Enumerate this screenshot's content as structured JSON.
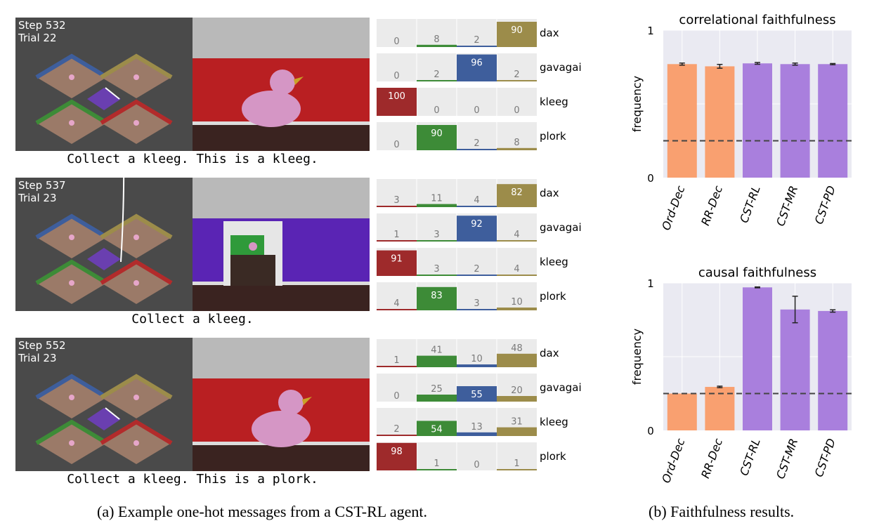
{
  "rows": [
    {
      "overlay": [
        "Step 532",
        "Trial 22"
      ],
      "instruction": "Collect a kleeg. This is a kleeg.",
      "view_wall": "#b91f22",
      "view_object": "duck",
      "words": [
        "dax",
        "gavagai",
        "kleeg",
        "plork"
      ]
    },
    {
      "overlay": [
        "Step 537",
        "Trial 23"
      ],
      "instruction": "Collect a kleeg.",
      "view_wall": "#5a24b4",
      "view_object": "doorway",
      "words": [
        "dax",
        "gavagai",
        "kleeg",
        "plork"
      ]
    },
    {
      "overlay": [
        "Step 552",
        "Trial 23"
      ],
      "instruction": "Collect a kleeg. This is a plork.",
      "view_wall": "#b91f22",
      "view_object": "duck",
      "words": [
        "dax",
        "gavagai",
        "kleeg",
        "plork"
      ]
    }
  ],
  "captions": {
    "a": "(a) Example one-hot messages from a CST-RL agent.",
    "b": "(b) Faithfulness results."
  },
  "chart_data": [
    {
      "type": "bar",
      "name": "message-row-1",
      "categories": [
        "dax",
        "gavagai",
        "kleeg",
        "plork"
      ],
      "values": [
        [
          0,
          8,
          2,
          90
        ],
        [
          0,
          2,
          96,
          2
        ],
        [
          100,
          0,
          0,
          0
        ],
        [
          0,
          90,
          2,
          8
        ]
      ],
      "colors": [
        "#9e2a2b",
        "#3d8b37",
        "#3e5e9c",
        "#9c8c4a"
      ]
    },
    {
      "type": "bar",
      "name": "message-row-2",
      "categories": [
        "dax",
        "gavagai",
        "kleeg",
        "plork"
      ],
      "values": [
        [
          3,
          11,
          4,
          82
        ],
        [
          1,
          3,
          92,
          4
        ],
        [
          91,
          3,
          2,
          4
        ],
        [
          4,
          83,
          3,
          10
        ]
      ],
      "colors": [
        "#9e2a2b",
        "#3d8b37",
        "#3e5e9c",
        "#9c8c4a"
      ]
    },
    {
      "type": "bar",
      "name": "message-row-3",
      "categories": [
        "dax",
        "gavagai",
        "kleeg",
        "plork"
      ],
      "values": [
        [
          1,
          41,
          10,
          48
        ],
        [
          0,
          25,
          55,
          20
        ],
        [
          2,
          54,
          13,
          31
        ],
        [
          98,
          1,
          0,
          1
        ]
      ],
      "colors": [
        "#9e2a2b",
        "#3d8b37",
        "#3e5e9c",
        "#9c8c4a"
      ]
    },
    {
      "type": "bar",
      "title": "correlational faithfulness",
      "ylabel": "frequency",
      "categories": [
        "Ord-Dec",
        "RR-Dec",
        "CST-RL",
        "CST-MR",
        "CST-PD"
      ],
      "values": [
        0.77,
        0.755,
        0.775,
        0.77,
        0.77
      ],
      "errors": [
        0.007,
        0.013,
        0.006,
        0.007,
        0.004
      ],
      "colors": [
        "#f9a070",
        "#f9a070",
        "#a97fdd",
        "#a97fdd",
        "#a97fdd"
      ],
      "baseline": 0.25,
      "ylim": [
        0,
        1
      ],
      "yticks": [
        "0",
        "1"
      ]
    },
    {
      "type": "bar",
      "title": "causal faithfulness",
      "ylabel": "frequency",
      "categories": [
        "Ord-Dec",
        "RR-Dec",
        "CST-RL",
        "CST-MR",
        "CST-PD"
      ],
      "values": [
        0.25,
        0.295,
        0.97,
        0.82,
        0.81
      ],
      "errors": [
        0.0,
        0.005,
        0.003,
        0.09,
        0.008
      ],
      "colors": [
        "#f9a070",
        "#f9a070",
        "#a97fdd",
        "#a97fdd",
        "#a97fdd"
      ],
      "baseline": 0.25,
      "ylim": [
        0,
        1
      ],
      "yticks": [
        "0",
        "1"
      ]
    }
  ]
}
